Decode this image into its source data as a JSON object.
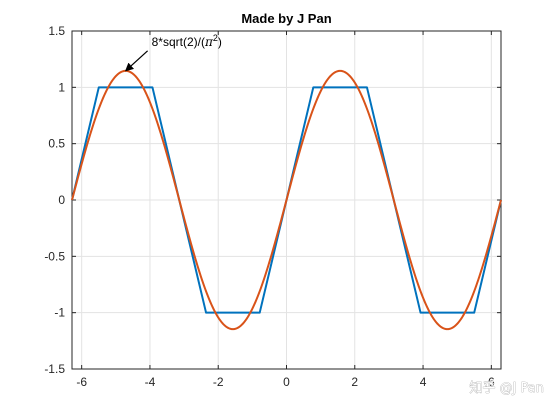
{
  "chart_data": {
    "type": "line",
    "title": "Made by J Pan",
    "xlabel": "",
    "ylabel": "",
    "xlim": [
      -6.2832,
      6.2832
    ],
    "ylim": [
      -1.5,
      1.5
    ],
    "grid": true,
    "xticks": [
      -6,
      -4,
      -2,
      0,
      2,
      4,
      6
    ],
    "xtick_labels": [
      "-6",
      "-4",
      "-2",
      "0",
      "2",
      "4",
      "6"
    ],
    "yticks": [
      1.5,
      1,
      0.5,
      0,
      -0.5,
      -1,
      -1.5
    ],
    "ytick_labels": [
      "1.5",
      "1",
      "0.5",
      "0",
      "-0.5",
      "-1",
      "-1.5"
    ],
    "series": [
      {
        "color": "#0072bd",
        "style": "trapezoid wave",
        "x": [
          -6.2832,
          -5.4978,
          -3.927,
          -2.3562,
          -0.7854,
          0.7854,
          2.3562,
          3.927,
          5.4978,
          6.2832
        ],
        "y": [
          0,
          1,
          1,
          -1,
          -1,
          1,
          1,
          -1,
          -1,
          0
        ]
      },
      {
        "color": "#d95319",
        "style": "sine, amplitude 8*sqrt(2)/(pi^2)",
        "amplitude": 1.1463,
        "x_range": [
          -6.2832,
          6.2832
        ]
      }
    ],
    "annotations": [
      {
        "text": "8*sqrt(2)/(π²)",
        "text_base": "8*sqrt(2)/(",
        "pi": "π",
        "exp": "2",
        "close": ")",
        "x": -4.7124,
        "y": 1.1463
      }
    ]
  },
  "watermark": "知乎 @J Pan"
}
